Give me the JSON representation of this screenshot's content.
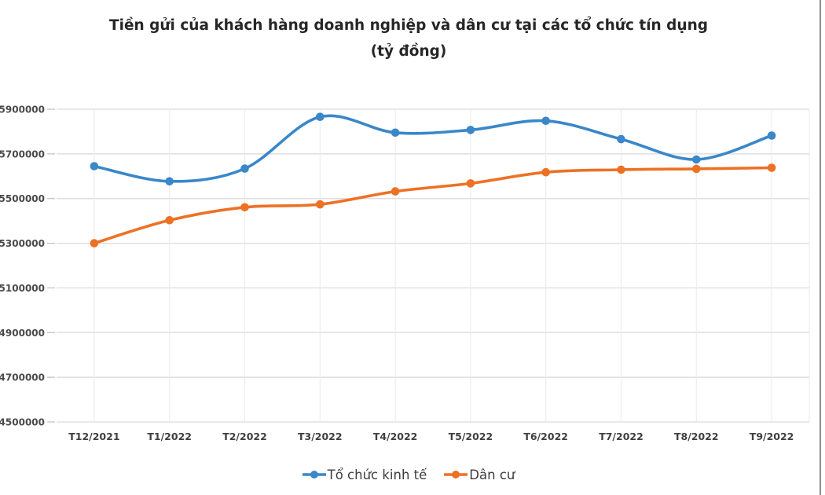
{
  "chart_data": {
    "type": "line",
    "title": "Tiền gửi của khách hàng doanh nghiệp và dân cư tại các tổ chức tín dụng",
    "subtitle": "(tỷ đồng)",
    "categories": [
      "T12/2021",
      "T1/2022",
      "T2/2022",
      "T3/2022",
      "T4/2022",
      "T5/2022",
      "T6/2022",
      "T7/2022",
      "T8/2022",
      "T9/2022"
    ],
    "series": [
      {
        "name": "Tổ chức kinh tế",
        "color": "#3A87C9",
        "values": [
          5645000,
          5577000,
          5634000,
          5866000,
          5795000,
          5807000,
          5848000,
          5766000,
          5675000,
          5782000
        ]
      },
      {
        "name": "Dân cư",
        "color": "#ED7124",
        "values": [
          5300000,
          5403000,
          5461000,
          5474000,
          5532000,
          5568000,
          5618000,
          5629000,
          5633000,
          5638000
        ]
      }
    ],
    "ylim": [
      4500000,
      5900000
    ],
    "ytick_step": 200000,
    "ytick_labels": [
      "5900000",
      "5700000",
      "5500000",
      "5300000",
      "5100000",
      "4900000",
      "4700000",
      "4500000"
    ],
    "grid": true,
    "smooth_lines": true,
    "legend_position": "bottom",
    "colors": {
      "title_text": "#262626",
      "axis_labels": "#454545",
      "gridline": "#d9d9d9",
      "vertical_gridline": "#ececec",
      "tick": "#bfbfbf",
      "legend_text": "#3d3d3d",
      "frame_border": "#8f8f8f"
    }
  }
}
